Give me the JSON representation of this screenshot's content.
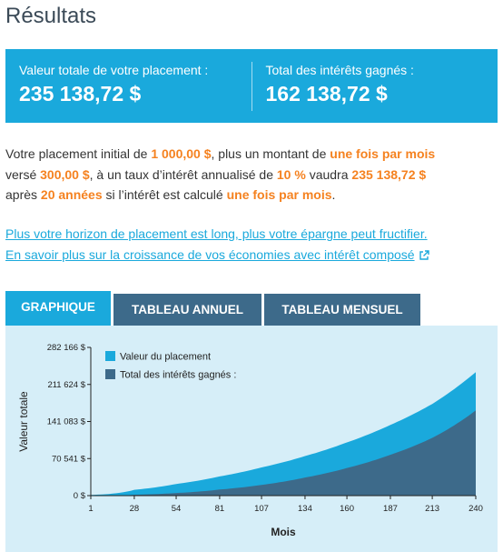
{
  "header": {
    "title": "Résultats"
  },
  "summary": {
    "total_label": "Valeur totale de votre placement :",
    "total_value": "235 138,72 $",
    "interest_label": "Total des intérêts gagnés :",
    "interest_value": "162 138,72 $"
  },
  "description": {
    "t1": "Votre placement initial de ",
    "initial": "1 000,00 $",
    "t2": ", plus un montant de ",
    "frequency": "une fois par mois",
    "t3": " versé ",
    "contribution": "300,00 $",
    "t4": ", à un taux d’intérêt annualisé de ",
    "rate": "10 %",
    "t5": " vaudra ",
    "final": "235 138,72 $",
    "t6": " après ",
    "years": "20 années",
    "t7": " si l’intérêt est calculé ",
    "compounding": "une fois par mois",
    "t8": "."
  },
  "links": {
    "horizon": "Plus votre horizon de placement est long, plus votre épargne peut fructifier.",
    "learn_more": "En savoir plus sur la croissance de vos économies avec intérêt composé"
  },
  "tabs": [
    {
      "label": "GRAPHIQUE",
      "active": true
    },
    {
      "label": "TABLEAU ANNUEL",
      "active": false
    },
    {
      "label": "TABLEAU MENSUEL",
      "active": false
    }
  ],
  "colors": {
    "accent": "#1aa9dc",
    "tab_inactive": "#3d6a8a",
    "highlight": "#f58220",
    "chart_bg": "#d6eef8",
    "series_total": "#1aa9dc",
    "series_interest": "#3d6a8a"
  },
  "chart_data": {
    "type": "area",
    "xlabel": "Mois",
    "ylabel": "Valeur totale",
    "x_ticks": [
      1,
      28,
      54,
      81,
      107,
      134,
      160,
      187,
      213,
      240
    ],
    "y_ticks": [
      "0 $",
      "70 541 $",
      "141 083 $",
      "211 624 $",
      "282 166 $"
    ],
    "y_tick_values": [
      0,
      70541,
      141083,
      211624,
      282166
    ],
    "xlim": [
      1,
      240
    ],
    "ylim": [
      0,
      282166
    ],
    "legend_position": "top-left",
    "series": [
      {
        "name": "Valeur du placement",
        "x": [
          1,
          28,
          54,
          81,
          107,
          134,
          160,
          187,
          213,
          240
        ],
        "values": [
          1308,
          11011,
          22171,
          36540,
          53620,
          75300,
          101280,
          134530,
          174540,
          235139
        ]
      },
      {
        "name": "Total des intérêts gagnés :",
        "x": [
          1,
          28,
          54,
          81,
          107,
          134,
          160,
          187,
          213,
          240
        ],
        "values": [
          8,
          1611,
          4971,
          11540,
          20420,
          34400,
          52580,
          77730,
          109940,
          162139
        ]
      }
    ]
  }
}
